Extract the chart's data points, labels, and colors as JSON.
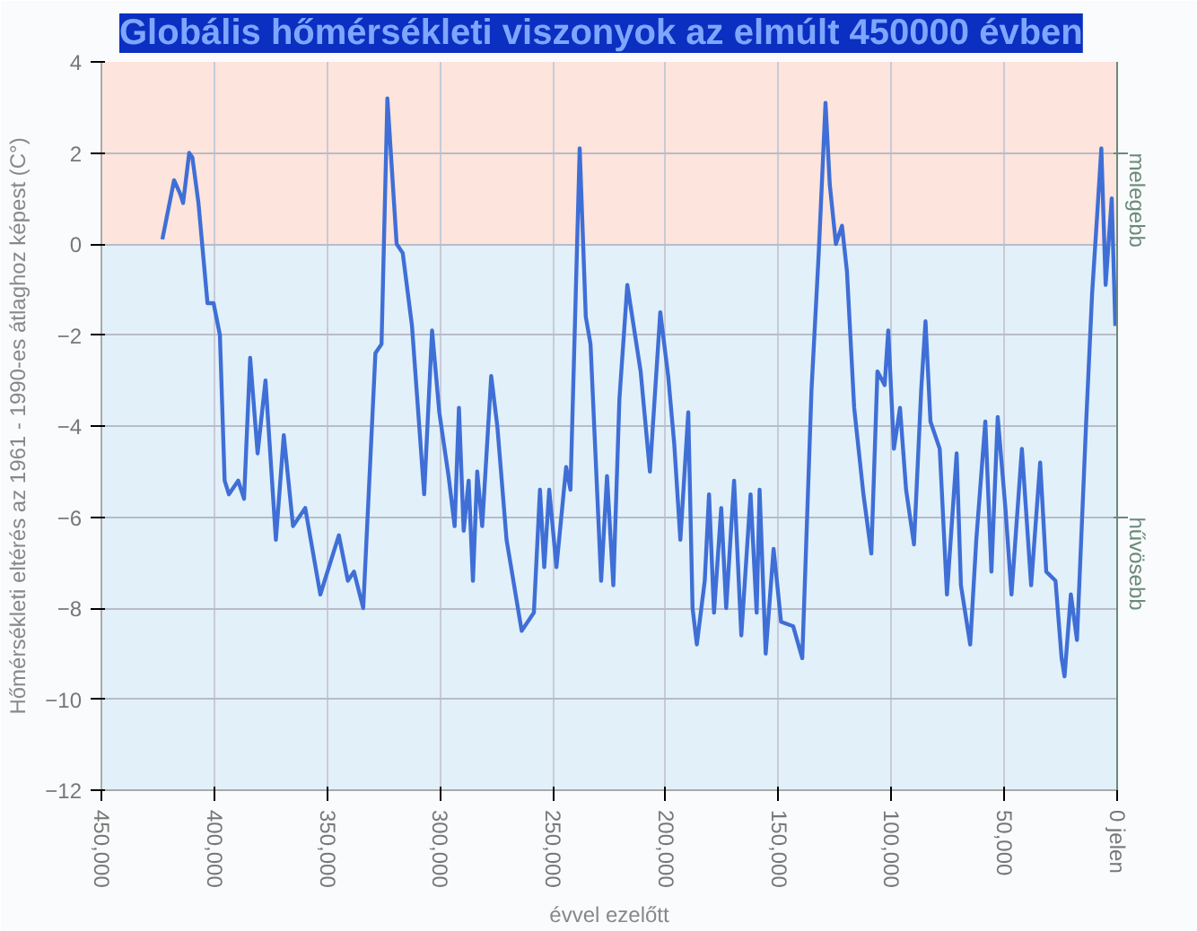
{
  "chart_data": {
    "type": "line",
    "title": "Globális hőmérsékleti viszonyok az elmúlt 450000 évben",
    "xlabel": "évvel ezelőtt",
    "ylabel": "Hőmérsékleti eltérés az 1961 - 1990-es átlaghoz képest (C°)",
    "xlim": [
      450000,
      0
    ],
    "ylim": [
      -12,
      4
    ],
    "xticks": [
      {
        "value": 450000,
        "label": "450,000"
      },
      {
        "value": 400000,
        "label": "400,000"
      },
      {
        "value": 350000,
        "label": "350,000"
      },
      {
        "value": 300000,
        "label": "300,000"
      },
      {
        "value": 250000,
        "label": "250,000"
      },
      {
        "value": 200000,
        "label": "200,000"
      },
      {
        "value": 150000,
        "label": "150,000"
      },
      {
        "value": 100000,
        "label": "100,000"
      },
      {
        "value": 50000,
        "label": "50,000"
      },
      {
        "value": 0,
        "label": "0 jelen"
      }
    ],
    "yticks": [
      -12,
      -10,
      -8,
      -6,
      -4,
      -2,
      0,
      2,
      4
    ],
    "grid": true,
    "line_style": "solid",
    "bands": [
      {
        "axis": "y",
        "from": 0,
        "to": 4,
        "label": "melegebb",
        "color": "#fde4dc"
      },
      {
        "axis": "y",
        "from": -12,
        "to": 0,
        "label": "hűvösebb",
        "color": "#e2f0fa"
      }
    ],
    "series": [
      {
        "color": "#3f6fd6",
        "x": [
          423000,
          417800,
          415100,
          413800,
          411100,
          409700,
          407000,
          403000,
          400300,
          397500,
          395400,
          393500,
          389400,
          386800,
          384100,
          380800,
          377300,
          372700,
          369200,
          365100,
          359700,
          353000,
          344800,
          340800,
          338100,
          334000,
          328600,
          325900,
          323300,
          319200,
          316500,
          312400,
          307000,
          303500,
          300300,
          296200,
          293500,
          291600,
          289500,
          287300,
          285400,
          283500,
          281300,
          277300,
          274600,
          270500,
          263800,
          258400,
          255700,
          253800,
          251600,
          248400,
          244100,
          242200,
          238100,
          235400,
          233300,
          228600,
          226000,
          223200,
          220500,
          217000,
          211100,
          207000,
          202400,
          198900,
          196200,
          193500,
          190000,
          188100,
          186200,
          182700,
          180800,
          178600,
          175400,
          173200,
          169700,
          166500,
          162400,
          159700,
          158400,
          155700,
          152200,
          148900,
          143500,
          139500,
          135400,
          132200,
          129200,
          127300,
          124600,
          121900,
          119700,
          116500,
          112400,
          108900,
          106200,
          103000,
          101400,
          98900,
          96200,
          93500,
          90000,
          86800,
          84900,
          82700,
          78600,
          75400,
          71100,
          69200,
          65100,
          62400,
          58400,
          55700,
          52900,
          49500,
          46800,
          42200,
          38100,
          34100,
          31400,
          27300,
          24600,
          23300,
          20500,
          17800,
          13800,
          11100,
          8900,
          7000,
          5100,
          2400,
          800
        ],
        "values": [
          0.1,
          1.4,
          1.1,
          0.9,
          2.0,
          1.9,
          0.9,
          -1.3,
          -1.3,
          -2.0,
          -5.2,
          -5.5,
          -5.2,
          -5.6,
          -2.5,
          -4.6,
          -3.0,
          -6.5,
          -4.2,
          -6.2,
          -5.8,
          -7.7,
          -6.4,
          -7.4,
          -7.2,
          -8.0,
          -2.4,
          -2.2,
          3.2,
          0.0,
          -0.2,
          -1.8,
          -5.5,
          -1.9,
          -3.7,
          -5.1,
          -6.2,
          -3.6,
          -6.3,
          -5.2,
          -7.4,
          -5.0,
          -6.2,
          -2.9,
          -4.0,
          -6.5,
          -8.5,
          -8.1,
          -5.4,
          -7.1,
          -5.4,
          -7.1,
          -4.9,
          -5.4,
          2.1,
          -1.6,
          -2.2,
          -7.4,
          -5.1,
          -7.5,
          -3.4,
          -0.9,
          -2.8,
          -5.0,
          -1.5,
          -2.9,
          -4.4,
          -6.5,
          -3.7,
          -8.0,
          -8.8,
          -7.4,
          -5.5,
          -8.1,
          -5.8,
          -8.0,
          -5.2,
          -8.6,
          -5.5,
          -8.1,
          -5.4,
          -9.0,
          -6.7,
          -8.3,
          -8.4,
          -9.1,
          -3.2,
          -0.2,
          3.1,
          1.3,
          0.0,
          0.4,
          -0.6,
          -3.6,
          -5.5,
          -6.8,
          -2.8,
          -3.1,
          -1.9,
          -4.5,
          -3.6,
          -5.4,
          -6.6,
          -3.2,
          -1.7,
          -3.9,
          -4.5,
          -7.7,
          -4.6,
          -7.5,
          -8.8,
          -6.5,
          -3.9,
          -7.2,
          -3.8,
          -5.8,
          -7.7,
          -4.5,
          -7.5,
          -4.8,
          -7.2,
          -7.4,
          -9.1,
          -9.5,
          -7.7,
          -8.7,
          -4.0,
          -1.1,
          0.6,
          2.1,
          -0.9,
          1.0,
          -1.8
        ]
      }
    ]
  }
}
